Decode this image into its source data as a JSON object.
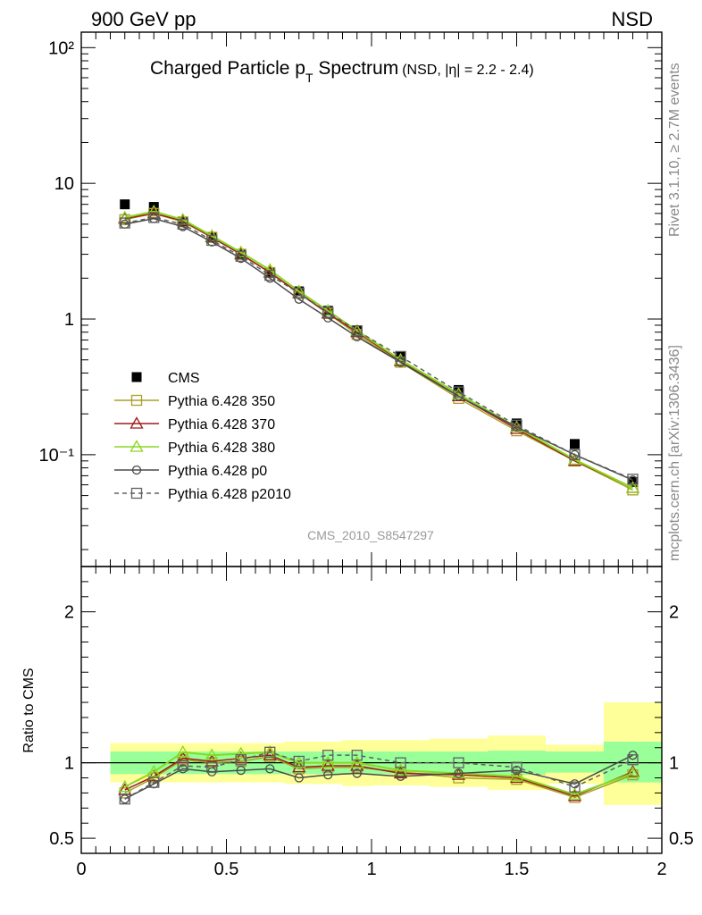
{
  "header": {
    "left": "900 GeV pp",
    "right": "NSD"
  },
  "side_labels": {
    "top": "Rivet 3.1.10, ≥ 2.7M events",
    "bottom": "mcplots.cern.ch [arXiv:1306.3436]"
  },
  "main_title": {
    "prefix": "Charged Particle p",
    "sub": "T",
    "suffix": " Spectrum",
    "small": "(NSD, |η| = 2.2 - 2.4)"
  },
  "analysis_label": "CMS_2010_S8547297",
  "ratio_ylabel": "Ratio to CMS",
  "colors": {
    "cms": "#000000",
    "p350": "#a8a028",
    "p370": "#9e1b1b",
    "p380": "#88d820",
    "p0": "#4a4a4a",
    "p2010": "#606060",
    "band_yellow": "#ffff99",
    "band_green": "#99ff99"
  },
  "chart_data": [
    {
      "type": "line",
      "panel": "main",
      "title": "Charged Particle pT Spectrum",
      "yscale": "log",
      "xlim": [
        0,
        2
      ],
      "ylim": [
        0.015,
        130
      ],
      "ytick_labels": [
        "10⁻¹",
        "1",
        "10",
        "10²"
      ],
      "x": [
        0.15,
        0.25,
        0.35,
        0.45,
        0.55,
        0.65,
        0.75,
        0.85,
        0.95,
        1.1,
        1.3,
        1.5,
        1.7,
        1.9
      ],
      "series": [
        {
          "name": "CMS",
          "key": "cms",
          "marker": "square-filled",
          "values": [
            7.0,
            6.7,
            5.2,
            4.0,
            3.0,
            2.2,
            1.6,
            1.15,
            0.82,
            0.53,
            0.3,
            0.17,
            0.12,
            0.063
          ]
        },
        {
          "name": "Pythia 6.428 350",
          "key": "p350",
          "marker": "square-open",
          "values": [
            5.4,
            6.0,
            5.2,
            4.0,
            3.0,
            2.2,
            1.55,
            1.1,
            0.77,
            0.48,
            0.26,
            0.15,
            0.09,
            0.055
          ]
        },
        {
          "name": "Pythia 6.428 370",
          "key": "p370",
          "marker": "triangle-open",
          "values": [
            5.5,
            6.0,
            5.3,
            4.0,
            3.0,
            2.2,
            1.55,
            1.1,
            0.8,
            0.49,
            0.27,
            0.155,
            0.09,
            0.057
          ]
        },
        {
          "name": "Pythia 6.428 380",
          "key": "p380",
          "marker": "triangle-open",
          "values": [
            5.6,
            6.2,
            5.4,
            4.1,
            3.1,
            2.3,
            1.6,
            1.15,
            0.82,
            0.5,
            0.28,
            0.16,
            0.092,
            0.057
          ]
        },
        {
          "name": "Pythia 6.428 p0",
          "key": "p0",
          "marker": "circle-open",
          "values": [
            5.0,
            5.5,
            4.8,
            3.7,
            2.8,
            2.0,
            1.4,
            1.02,
            0.74,
            0.48,
            0.27,
            0.16,
            0.1,
            0.065
          ]
        },
        {
          "name": "Pythia 6.428 p2010",
          "key": "p2010",
          "marker": "square-open",
          "dashed": true,
          "values": [
            5.1,
            5.6,
            5.0,
            3.8,
            2.9,
            2.1,
            1.55,
            1.12,
            0.82,
            0.53,
            0.29,
            0.165,
            0.1,
            0.066
          ]
        }
      ]
    },
    {
      "type": "line",
      "panel": "ratio",
      "ylabel": "Ratio to CMS",
      "xlim": [
        0,
        2
      ],
      "ylim": [
        0.4,
        2.3
      ],
      "ytick_labels": [
        "0.5",
        "1",
        "2"
      ],
      "xtick_labels": [
        "0",
        "0.5",
        "1",
        "1.5",
        "2"
      ],
      "bands": {
        "edges": [
          0.1,
          0.2,
          0.3,
          0.4,
          0.5,
          0.6,
          0.7,
          0.8,
          0.9,
          1.0,
          1.2,
          1.4,
          1.6,
          1.8,
          2.0
        ],
        "green_lo": [
          0.925,
          0.925,
          0.925,
          0.925,
          0.925,
          0.925,
          0.925,
          0.925,
          0.925,
          0.925,
          0.925,
          0.92,
          0.935,
          0.87
        ],
        "green_hi": [
          1.075,
          1.075,
          1.075,
          1.075,
          1.075,
          1.075,
          1.075,
          1.075,
          1.075,
          1.075,
          1.075,
          1.08,
          1.075,
          1.14
        ],
        "yellow_lo": [
          0.87,
          0.87,
          0.87,
          0.87,
          0.87,
          0.87,
          0.86,
          0.86,
          0.845,
          0.85,
          0.84,
          0.82,
          0.86,
          0.72
        ],
        "yellow_hi": [
          1.13,
          1.13,
          1.13,
          1.13,
          1.13,
          1.13,
          1.14,
          1.14,
          1.15,
          1.15,
          1.16,
          1.18,
          1.12,
          1.4
        ]
      },
      "x": [
        0.15,
        0.25,
        0.35,
        0.45,
        0.55,
        0.65,
        0.75,
        0.85,
        0.95,
        1.1,
        1.3,
        1.5,
        1.7,
        1.9
      ],
      "series": [
        {
          "name": "Pythia 6.428 350",
          "key": "p350",
          "marker": "square-open",
          "values": [
            0.8,
            0.9,
            1.02,
            1.0,
            1.01,
            1.04,
            0.96,
            0.97,
            0.97,
            0.94,
            0.9,
            0.89,
            0.77,
            0.92
          ]
        },
        {
          "name": "Pythia 6.428 370",
          "key": "p370",
          "marker": "triangle-open",
          "values": [
            0.82,
            0.91,
            1.03,
            1.01,
            1.03,
            1.05,
            0.97,
            0.98,
            0.98,
            0.93,
            0.92,
            0.9,
            0.78,
            0.94
          ]
        },
        {
          "name": "Pythia 6.428 380",
          "key": "p380",
          "marker": "triangle-open",
          "values": [
            0.84,
            0.94,
            1.07,
            1.05,
            1.06,
            1.07,
            1.0,
            1.0,
            1.0,
            0.95,
            0.93,
            0.91,
            0.79,
            0.93
          ]
        },
        {
          "name": "Pythia 6.428 p0",
          "key": "p0",
          "marker": "circle-open",
          "values": [
            0.76,
            0.86,
            0.96,
            0.94,
            0.95,
            0.96,
            0.9,
            0.92,
            0.93,
            0.91,
            0.93,
            0.95,
            0.86,
            1.05
          ]
        },
        {
          "name": "Pythia 6.428 p2010",
          "key": "p2010",
          "marker": "square-open",
          "dashed": true,
          "values": [
            0.76,
            0.87,
            0.98,
            0.97,
            1.02,
            1.07,
            1.01,
            1.05,
            1.05,
            1.0,
            1.0,
            0.97,
            0.84,
            1.02
          ]
        }
      ]
    }
  ]
}
